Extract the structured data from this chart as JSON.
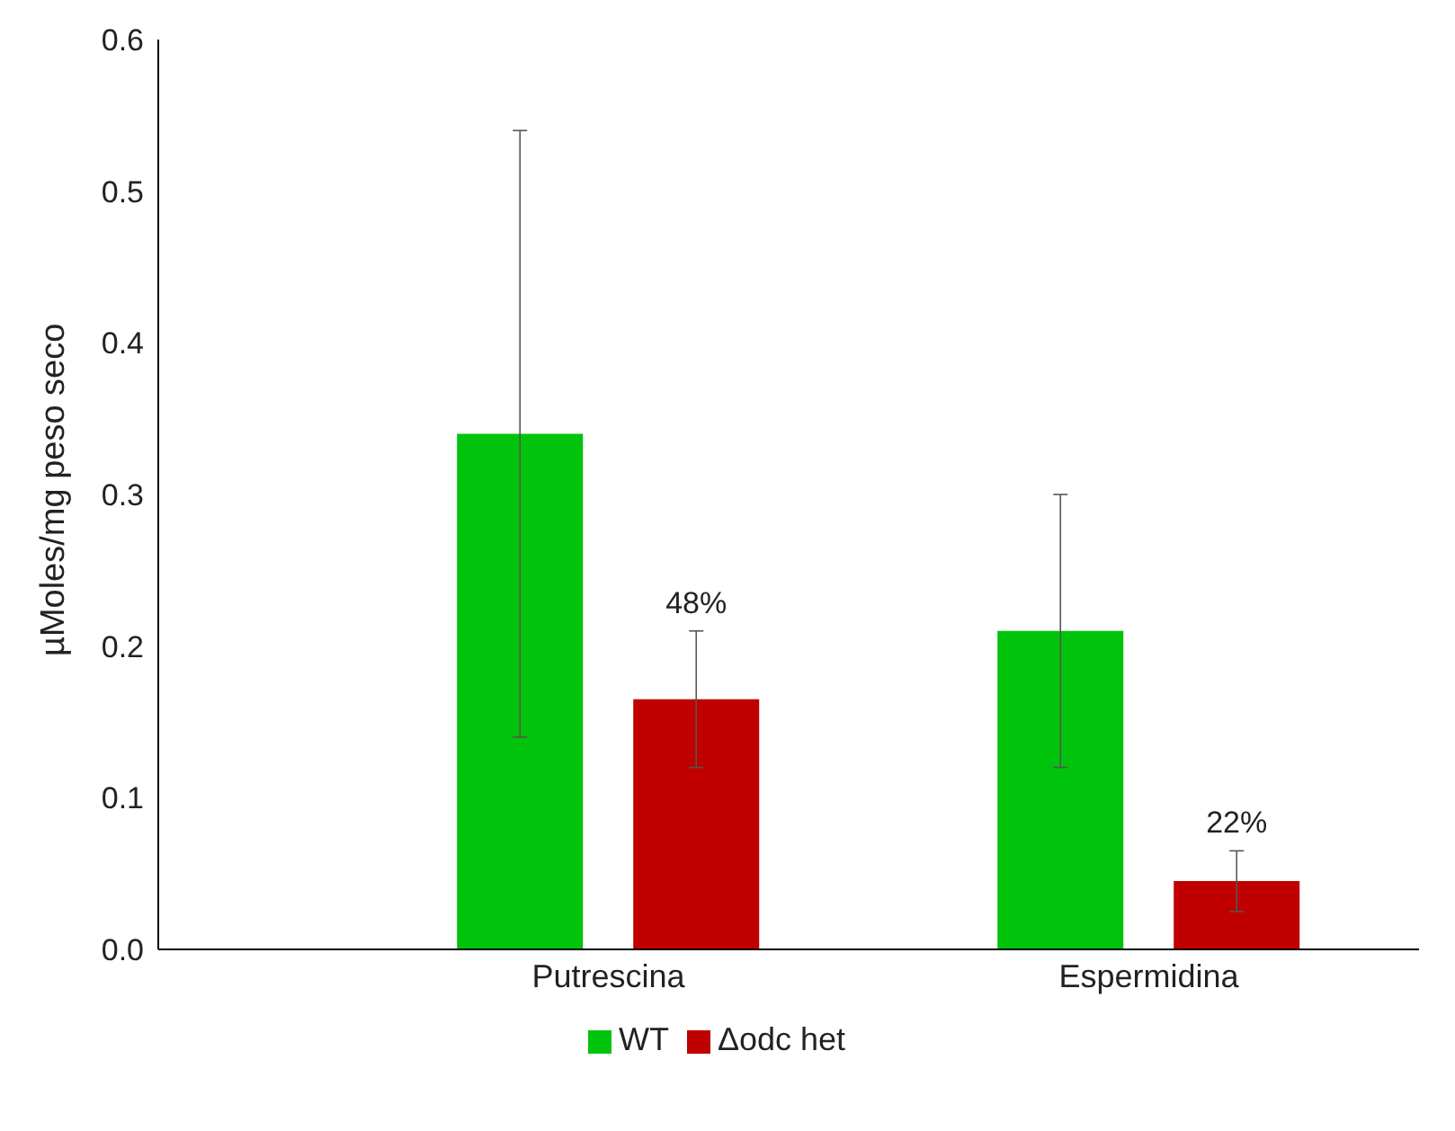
{
  "chart_data": {
    "type": "bar",
    "ylabel": "µMoles/mg peso seco",
    "categories": [
      "Putrescina",
      "Espermidina"
    ],
    "series": [
      {
        "name": "WT",
        "color": "#00c40c",
        "values": [
          0.34,
          0.21
        ],
        "errors": [
          0.2,
          0.09
        ]
      },
      {
        "name": "Δodc het",
        "color": "#c00000",
        "values": [
          0.165,
          0.045
        ],
        "errors": [
          0.045,
          0.02
        ]
      }
    ],
    "annotations": [
      "48%",
      "22%"
    ],
    "ylim": [
      0,
      0.6
    ],
    "yticks": [
      {
        "value": 0,
        "label": "0.0"
      },
      0.1,
      0.2,
      0.3,
      0.4,
      0.5,
      0.6
    ],
    "grid": false,
    "legend": "bottom"
  }
}
